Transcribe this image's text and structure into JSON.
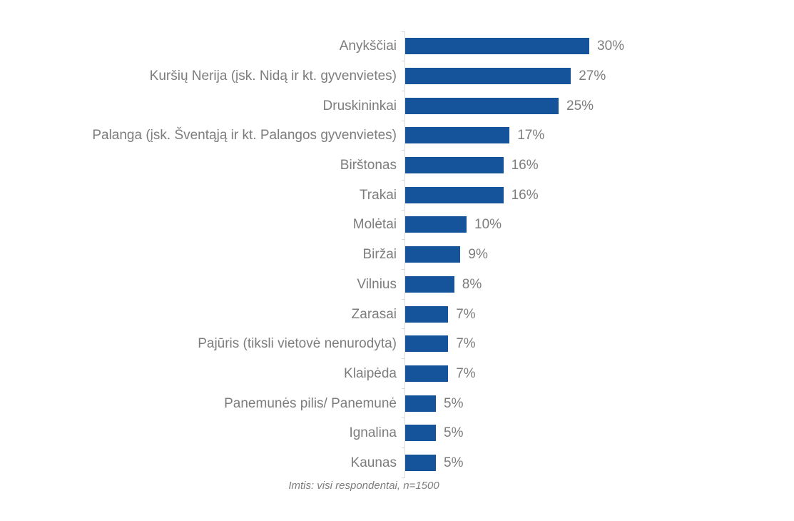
{
  "chart_data": {
    "type": "bar",
    "orientation": "horizontal",
    "title": "",
    "xlabel": "",
    "ylabel": "",
    "xlim": [
      0,
      30
    ],
    "grid": false,
    "legend": false,
    "value_suffix": "%",
    "categories": [
      "Anykščiai",
      "Kuršių Nerija (įsk. Nidą ir kt. gyvenvietes)",
      "Druskininkai",
      "Palanga (įsk. Šventąją ir kt. Palangos gyvenvietes)",
      "Birštonas",
      "Trakai",
      "Molėtai",
      "Biržai",
      "Vilnius",
      "Zarasai",
      "Pajūris (tiksli vietovė nenurodyta)",
      "Klaipėda",
      "Panemunės pilis/ Panemunė",
      "Ignalina",
      "Kaunas"
    ],
    "values": [
      30,
      27,
      25,
      17,
      16,
      16,
      10,
      9,
      8,
      7,
      7,
      7,
      5,
      5,
      5
    ],
    "data_labels": [
      "30%",
      "27%",
      "25%",
      "17%",
      "16%",
      "16%",
      "10%",
      "9%",
      "8%",
      "7%",
      "7%",
      "7%",
      "5%",
      "5%",
      "5%"
    ],
    "footnote": "Imtis: visi respondentai, n=1500"
  },
  "colors": {
    "bar": "#15549a",
    "text": "#7d7d7d",
    "axis": "#d9d9d9"
  }
}
